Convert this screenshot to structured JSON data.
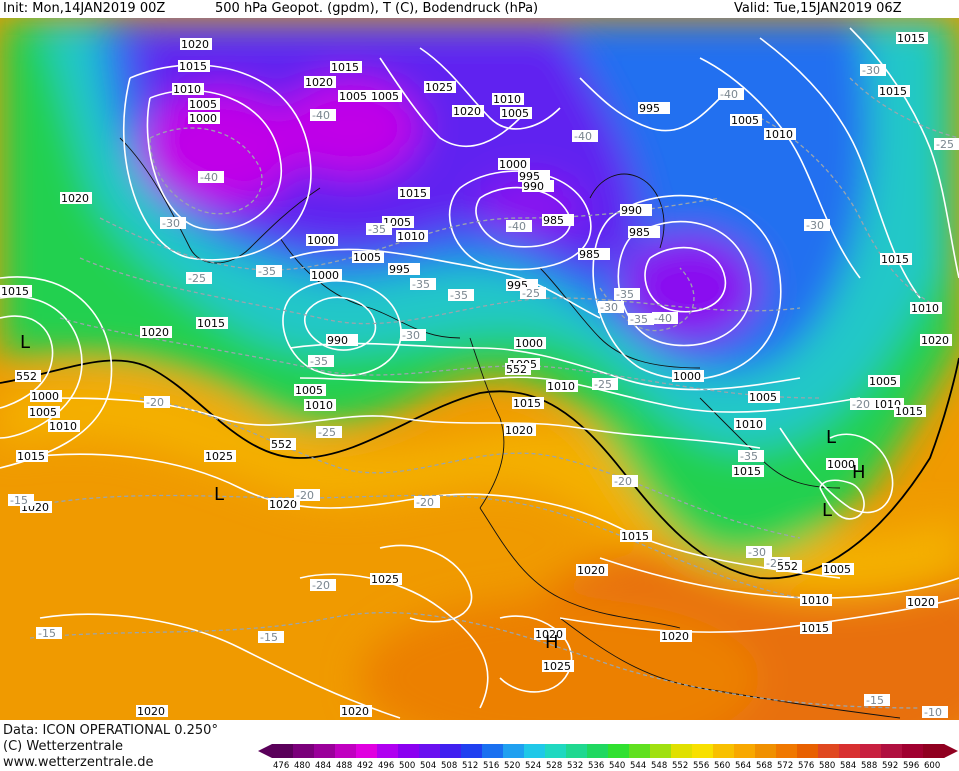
{
  "header": {
    "init": "Init: Mon,14JAN2019 00Z",
    "title": "500 hPa Geopot. (gpdm), T (C), Bodendruck (hPa)",
    "valid": "Valid: Tue,15JAN2019 06Z"
  },
  "footer": {
    "data_line": "Data: ICON OPERATIONAL 0.250°",
    "copyright": "(C) Wetterzentrale",
    "url": "www.wetterzentrale.de"
  },
  "colorbar": {
    "ticks": [
      "476",
      "480",
      "484",
      "488",
      "492",
      "496",
      "500",
      "504",
      "508",
      "512",
      "516",
      "520",
      "524",
      "528",
      "532",
      "536",
      "540",
      "544",
      "548",
      "552",
      "556",
      "560",
      "564",
      "568",
      "572",
      "576",
      "580",
      "584",
      "588",
      "592",
      "596",
      "600"
    ],
    "colors": [
      "#5a005a",
      "#7a007a",
      "#9a009a",
      "#c000c0",
      "#e000e0",
      "#b000f0",
      "#8a00f0",
      "#6a10f0",
      "#4020f0",
      "#2040f0",
      "#1a70f0",
      "#20a0f0",
      "#20c8e8",
      "#20d8c0",
      "#20d890",
      "#20d860",
      "#30e030",
      "#60e020",
      "#a0e010",
      "#e0e000",
      "#f8e000",
      "#f8c000",
      "#f8a800",
      "#f09000",
      "#f07800",
      "#e86000",
      "#e04820",
      "#d83030",
      "#c82040",
      "#b01040",
      "#a00030",
      "#900020"
    ]
  },
  "pressure_labels": [
    "1020",
    "1015",
    "1010",
    "1005",
    "1000",
    "995",
    "990",
    "985",
    "1025"
  ],
  "temperature_labels": [
    "-40",
    "-35",
    "-30",
    "-25",
    "-20",
    "-15",
    "-10"
  ],
  "geopotential_labels": [
    "552"
  ],
  "centers": {
    "low": "L",
    "high": "H"
  },
  "colors": {
    "cold_core": "#d000e8",
    "warm_band": "#f0a000",
    "isobar": "#ffffff",
    "isotherm": "#9aa5ad"
  }
}
